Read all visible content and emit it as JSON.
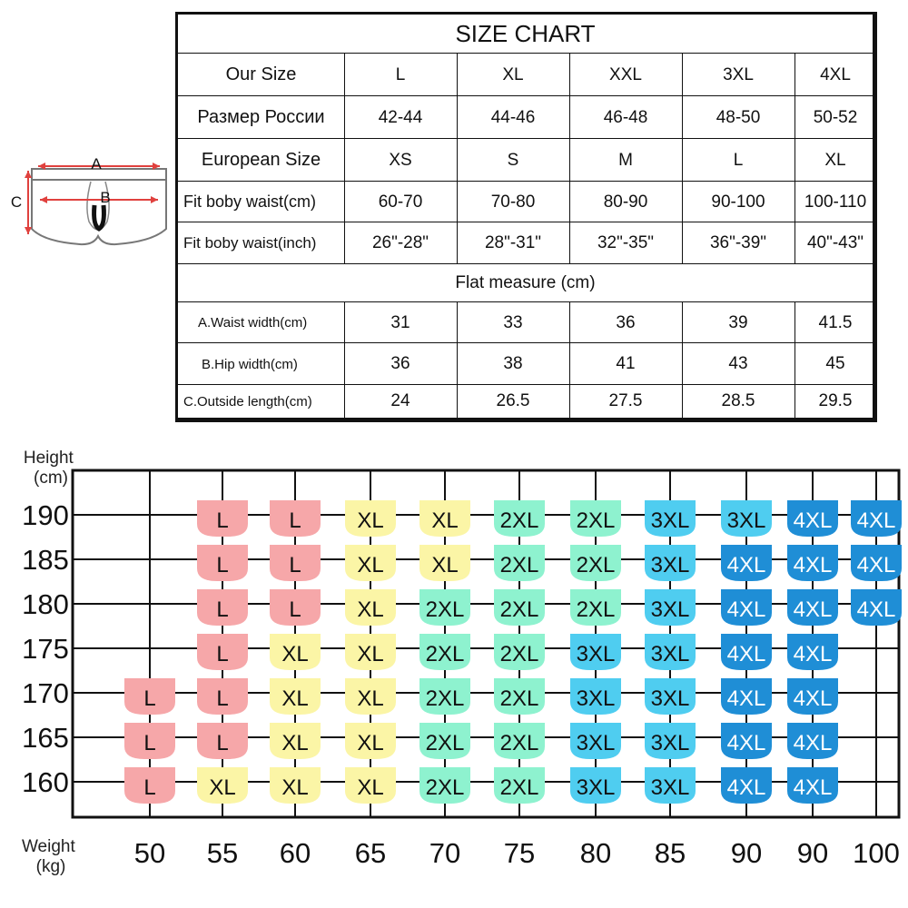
{
  "diagram": {
    "label_a": "A",
    "label_b": "B",
    "label_c": "C"
  },
  "size_table": {
    "title": "SIZE CHART",
    "rows": [
      {
        "label": "Our Size",
        "values": [
          "L",
          "XL",
          "XXL",
          "3XL",
          "4XL"
        ]
      },
      {
        "label": "Размер России",
        "values": [
          "42-44",
          "44-46",
          "46-48",
          "48-50",
          "50-52"
        ]
      },
      {
        "label": "European Size",
        "values": [
          "XS",
          "S",
          "M",
          "L",
          "XL"
        ]
      },
      {
        "label": "Fit boby waist(cm)",
        "values": [
          "60-70",
          "70-80",
          "80-90",
          "90-100",
          "100-110"
        ]
      },
      {
        "label": "Fit boby waist(inch)",
        "values": [
          "26\"-28\"",
          "28\"-31\"",
          "32\"-35\"",
          "36\"-39\"",
          "40\"-43\""
        ]
      }
    ],
    "flat_measure_label": "Flat measure (cm)",
    "flat_rows": [
      {
        "label": "A.Waist width(cm)",
        "values": [
          "31",
          "33",
          "36",
          "39",
          "41.5"
        ]
      },
      {
        "label": "B.Hip width(cm)",
        "values": [
          "36",
          "38",
          "41",
          "43",
          "45"
        ]
      },
      {
        "label": "C.Outside length(cm)",
        "values": [
          "24",
          "26.5",
          "27.5",
          "28.5",
          "29.5"
        ]
      }
    ]
  },
  "colors": {
    "L": "#f6a7a9",
    "XL": "#fbf5a6",
    "2XL": "#8ef2cf",
    "3XL": "#4fcdf0",
    "4XL": "#1f8ed6",
    "grid": "#111111"
  },
  "chart_data": {
    "type": "table",
    "ylabel": "Height\n(cm)",
    "xlabel": "Weight\n(kg)",
    "y_ticks": [
      "190",
      "185",
      "180",
      "175",
      "170",
      "165",
      "160"
    ],
    "x_ticks": [
      "50",
      "55",
      "60",
      "65",
      "70",
      "75",
      "80",
      "85",
      "90",
      "90",
      "100"
    ],
    "rows": [
      {
        "height": "190",
        "sizes": [
          null,
          "L",
          "L",
          "XL",
          "XL",
          "2XL",
          "2XL",
          "3XL",
          "3XL",
          "4XL",
          "4XL"
        ]
      },
      {
        "height": "185",
        "sizes": [
          null,
          "L",
          "L",
          "XL",
          "XL",
          "2XL",
          "2XL",
          "3XL",
          "4XL",
          "4XL",
          "4XL"
        ]
      },
      {
        "height": "180",
        "sizes": [
          null,
          "L",
          "L",
          "XL",
          "2XL",
          "2XL",
          "2XL",
          "3XL",
          "4XL",
          "4XL",
          "4XL"
        ]
      },
      {
        "height": "175",
        "sizes": [
          null,
          "L",
          "XL",
          "XL",
          "2XL",
          "2XL",
          "3XL",
          "3XL",
          "4XL",
          "4XL",
          null
        ]
      },
      {
        "height": "170",
        "sizes": [
          "L",
          "L",
          "XL",
          "XL",
          "2XL",
          "2XL",
          "3XL",
          "3XL",
          "4XL",
          "4XL",
          null
        ]
      },
      {
        "height": "165",
        "sizes": [
          "L",
          "L",
          "XL",
          "XL",
          "2XL",
          "2XL",
          "3XL",
          "3XL",
          "4XL",
          "4XL",
          null
        ]
      },
      {
        "height": "160",
        "sizes": [
          "L",
          "XL",
          "XL",
          "XL",
          "2XL",
          "2XL",
          "3XL",
          "3XL",
          "4XL",
          "4XL",
          null
        ]
      }
    ]
  }
}
